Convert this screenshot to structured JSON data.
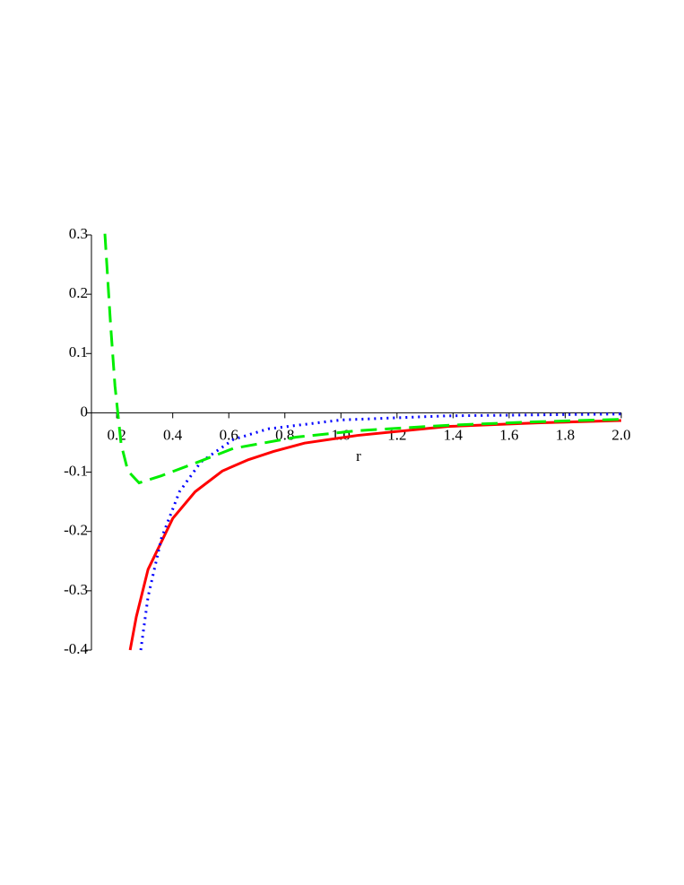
{
  "chart_data": {
    "type": "line",
    "x_label": "r",
    "xlim": [
      0.11,
      2.0
    ],
    "ylim": [
      -0.4,
      0.3
    ],
    "xticks": [
      0.2,
      0.4,
      0.6,
      0.8,
      {
        "value": 1.0,
        "label": "1.0"
      },
      1.2,
      1.4,
      1.6,
      1.8,
      {
        "value": 2.0,
        "label": "2.0"
      }
    ],
    "yticks": [
      -0.4,
      -0.3,
      -0.2,
      -0.1,
      0,
      0.1,
      0.2,
      0.3
    ],
    "series": [
      {
        "color": "#ff0000",
        "style": "solid",
        "x": [
          0.248,
          0.27,
          0.312,
          0.4,
          0.48,
          0.577,
          0.67,
          0.76,
          0.87,
          1.06,
          1.38,
          1.7,
          2.0
        ],
        "values": [
          -0.4,
          -0.344,
          -0.264,
          -0.178,
          -0.133,
          -0.098,
          -0.079,
          -0.065,
          -0.051,
          -0.038,
          -0.023,
          -0.017,
          -0.013
        ]
      },
      {
        "color": "#0000ff",
        "style": "dotted",
        "x": [
          0.286,
          0.312,
          0.36,
          0.424,
          0.5,
          0.616,
          0.74,
          1.0,
          1.38,
          2.0
        ],
        "values": [
          -0.4,
          -0.31,
          -0.211,
          -0.133,
          -0.083,
          -0.045,
          -0.027,
          -0.012,
          -0.005,
          -0.002
        ]
      },
      {
        "color": "#00ee00",
        "style": "dashed",
        "x": [
          0.158,
          0.178,
          0.194,
          0.216,
          0.24,
          0.28,
          0.36,
          0.49,
          0.616,
          0.84,
          1.06,
          1.38,
          1.7,
          2.0
        ],
        "values": [
          0.302,
          0.151,
          0.045,
          -0.053,
          -0.098,
          -0.118,
          -0.106,
          -0.083,
          -0.06,
          -0.041,
          -0.03,
          -0.021,
          -0.015,
          -0.011
        ]
      }
    ]
  }
}
